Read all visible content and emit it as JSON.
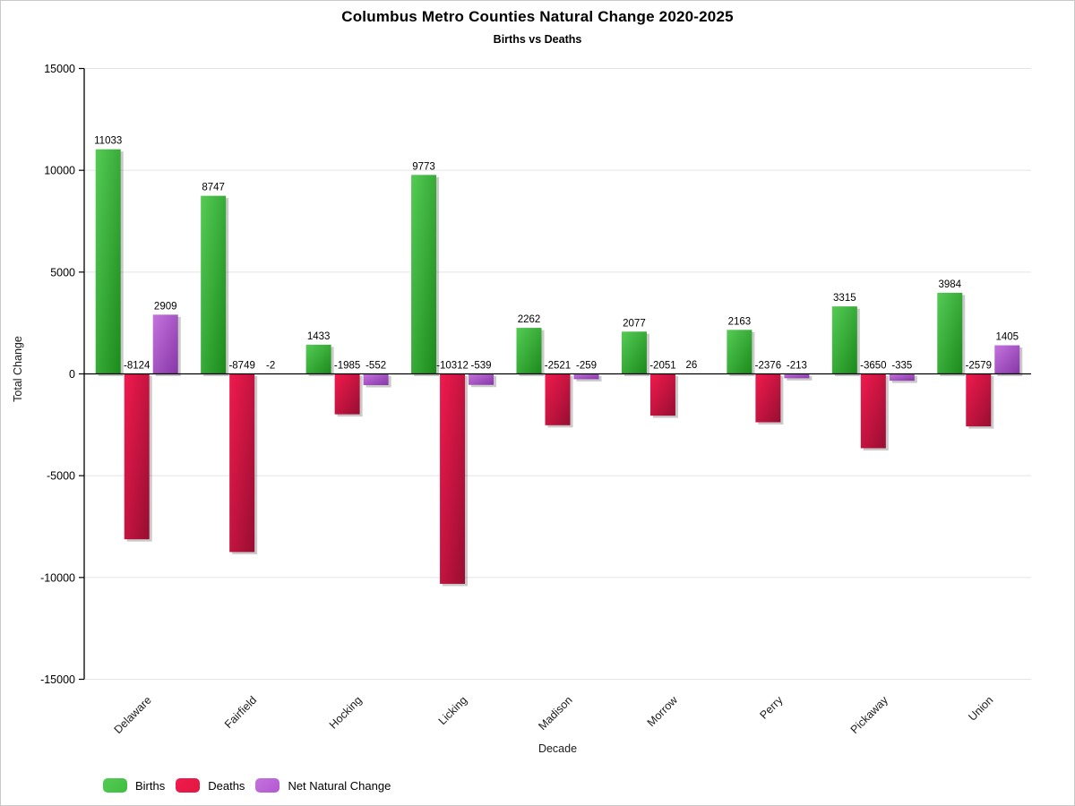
{
  "chart_data": {
    "type": "bar",
    "title": "Columbus Metro Counties Natural Change 2020-2025",
    "subtitle": "Births vs Deaths",
    "xlabel": "Decade",
    "ylabel": "Total Change",
    "categories": [
      "Delaware",
      "Fairfield",
      "Hocking",
      "Licking",
      "Madison",
      "Morrow",
      "Perry",
      "Pickaway",
      "Union"
    ],
    "series": [
      {
        "name": "Births",
        "color": "#3ebf3e",
        "gradient": [
          "#55cb55",
          "#1b8a1b"
        ],
        "values": [
          11033,
          8747,
          1433,
          9773,
          2262,
          2077,
          2163,
          3315,
          3984
        ]
      },
      {
        "name": "Deaths",
        "color": "#e11840",
        "gradient": [
          "#f11a4e",
          "#970e31"
        ],
        "values": [
          -8124,
          -8749,
          -1985,
          -10312,
          -2521,
          -2051,
          -2376,
          -3650,
          -2579
        ]
      },
      {
        "name": "Net Natural Change",
        "color": "#b258d2",
        "gradient": [
          "#c473de",
          "#8636a6"
        ],
        "values": [
          2909,
          -2,
          -552,
          -539,
          -259,
          26,
          -213,
          -335,
          1405
        ]
      }
    ],
    "ylim": [
      -15000,
      15000
    ],
    "ytick_step": 5000,
    "ytick_labels": [
      "-15000",
      "-10000",
      "-5000",
      "0",
      "5000",
      "10000",
      "15000"
    ],
    "grid": "horizontal-major",
    "gridline_color": "#e4e4e4",
    "zero_line_color": "#000000",
    "legend_position": "bottom-left"
  }
}
